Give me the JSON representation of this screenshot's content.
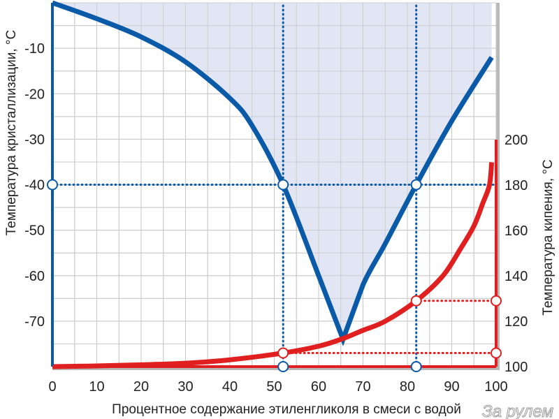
{
  "chart_data": {
    "type": "line",
    "x_axis": {
      "label": "Процентное содержание этиленгликоля в смеси с водой",
      "range": [
        0,
        100
      ],
      "ticks": [
        "0",
        "10",
        "20",
        "30",
        "40",
        "50",
        "60",
        "70",
        "80",
        "90",
        "100"
      ]
    },
    "y_axis_left": {
      "label": "Температура кристаллизации, °C",
      "range": [
        -80,
        0
      ],
      "ticks": [
        "-10",
        "-20",
        "-30",
        "-40",
        "-50",
        "-60",
        "-70"
      ]
    },
    "y_axis_right": {
      "label": "Температура кипения, °C",
      "range": [
        100,
        200
      ],
      "ticks": [
        "100",
        "120",
        "140",
        "160",
        "180",
        "200"
      ]
    },
    "grid": true,
    "series": [
      {
        "axis": "left",
        "color": "#0a5aa8",
        "fill": "#dfe3f3",
        "x": [
          0,
          10,
          20,
          30,
          40,
          45,
          52,
          60,
          65.5,
          70,
          75,
          82,
          90,
          99
        ],
        "y": [
          0,
          -3.5,
          -7.5,
          -13,
          -21,
          -27,
          -40,
          -60,
          -74,
          -62,
          -53,
          -40,
          -26,
          -12
        ]
      },
      {
        "axis": "right",
        "color": "#e02020",
        "x": [
          0,
          10,
          20,
          30,
          40,
          52,
          60,
          65,
          70,
          75,
          82,
          88,
          92,
          95,
          97,
          98.5,
          99
        ],
        "y": [
          100,
          100.3,
          100.8,
          101.5,
          103,
          106,
          109,
          112,
          116,
          120,
          129,
          140,
          152,
          162,
          172,
          180,
          190
        ]
      }
    ],
    "reference_lines": [
      {
        "color": "#0a5aa8",
        "axis": "left",
        "orientation": "horizontal",
        "value": -40,
        "from_x": 0,
        "to_x": 100
      },
      {
        "color": "#0a5aa8",
        "axis": "left",
        "orientation": "vertical",
        "value": 52,
        "from_y": -80,
        "to_y": 0
      },
      {
        "color": "#0a5aa8",
        "axis": "left",
        "orientation": "vertical",
        "value": 82,
        "from_y": -80,
        "to_y": 0
      },
      {
        "color": "#e02020",
        "axis": "right",
        "orientation": "horizontal",
        "value": 106,
        "from_x": 52,
        "to_x": 100
      },
      {
        "color": "#e02020",
        "axis": "right",
        "orientation": "horizontal",
        "value": 129,
        "from_x": 82,
        "to_x": 100
      }
    ],
    "markers": [
      {
        "axis": "left",
        "x": 0,
        "y": -40
      },
      {
        "axis": "left",
        "x": 52,
        "y": -40
      },
      {
        "axis": "left",
        "x": 82,
        "y": -40
      },
      {
        "axis": "right",
        "x": 52,
        "y": 106
      },
      {
        "axis": "right",
        "x": 100,
        "y": 106
      },
      {
        "axis": "right",
        "x": 82,
        "y": 129
      },
      {
        "axis": "right",
        "x": 100,
        "y": 129
      },
      {
        "axis": "x",
        "x": 52
      },
      {
        "axis": "x",
        "x": 82
      }
    ]
  },
  "watermark": "За рулем"
}
